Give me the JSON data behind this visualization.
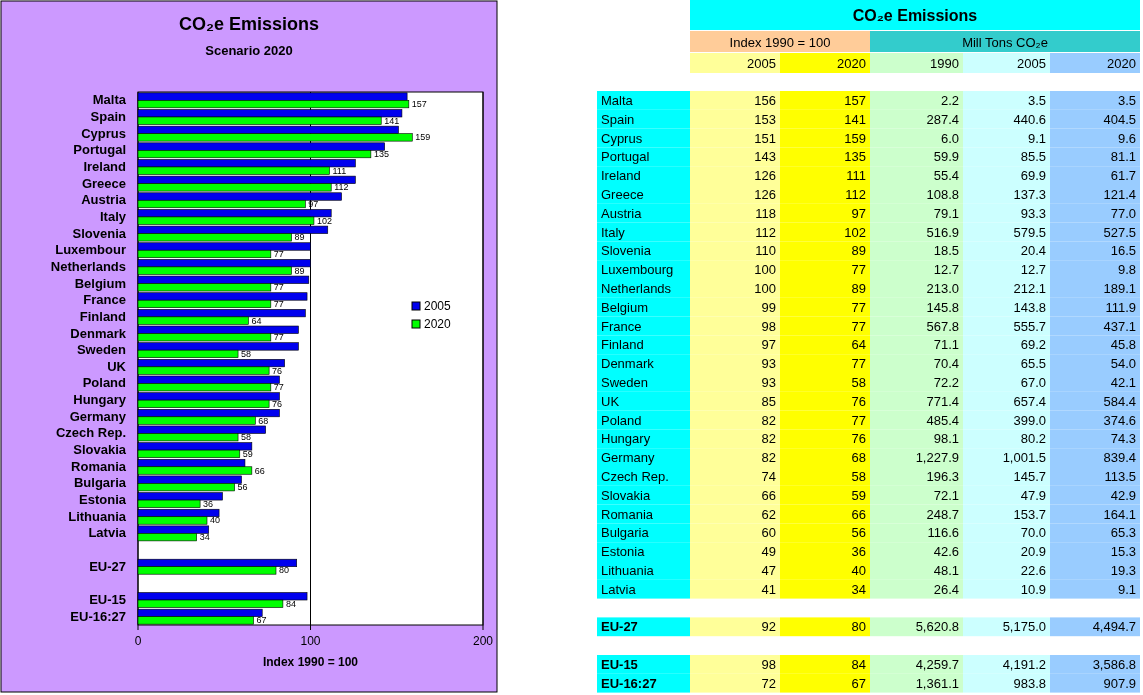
{
  "chart_data": [
    {
      "type": "bar",
      "orientation": "horizontal",
      "title": "CO₂e Emissions",
      "subtitle": "Scenario 2020",
      "xlabel": "Index 1990 = 100",
      "categories": [
        "Malta",
        "Spain",
        "Cyprus",
        "Portugal",
        "Ireland",
        "Greece",
        "Austria",
        "Italy",
        "Slovenia",
        "Luxembour",
        "Netherlands",
        "Belgium",
        "France",
        "Finland",
        "Denmark",
        "Sweden",
        "UK",
        "Poland",
        "Hungary",
        "Germany",
        "Czech Rep.",
        "Slovakia",
        "Romania",
        "Bulgaria",
        "Estonia",
        "Lithuania",
        "Latvia",
        null,
        "EU-27",
        null,
        "EU-15",
        "EU-16:27"
      ],
      "series": [
        {
          "name": "2005",
          "color": "#0000ee",
          "values": [
            156,
            153,
            151,
            143,
            126,
            126,
            118,
            112,
            110,
            100,
            100,
            99,
            98,
            97,
            93,
            93,
            85,
            82,
            82,
            82,
            74,
            66,
            62,
            60,
            49,
            47,
            41,
            null,
            92,
            null,
            98,
            72
          ]
        },
        {
          "name": "2020",
          "color": "#00ff00",
          "values": [
            157,
            141,
            159,
            135,
            111,
            112,
            97,
            102,
            89,
            77,
            89,
            77,
            77,
            64,
            77,
            58,
            76,
            77,
            76,
            68,
            58,
            59,
            66,
            56,
            36,
            40,
            34,
            null,
            80,
            null,
            84,
            67
          ],
          "value_labels": [
            "157",
            "141",
            "159",
            "135",
            "111",
            "112",
            "97",
            "102",
            "89",
            "77",
            "89",
            "77",
            "77",
            "64",
            "77",
            "58",
            "76",
            "77",
            "76",
            "68",
            "58",
            "59",
            "66",
            "56",
            "36",
            "40",
            "34",
            null,
            "80",
            null,
            "84",
            "67"
          ]
        }
      ],
      "xlim": [
        0,
        200
      ],
      "xticks": [
        0,
        100,
        200
      ],
      "grid": "x",
      "legend": "right"
    },
    {
      "type": "heatmap",
      "title": "CO₂e Emissions",
      "annotations": [
        "Index 1990 = 100",
        "Mill Tons CO₂e"
      ],
      "categories": [
        "2005",
        "2020",
        "1990",
        "2005",
        "2020"
      ],
      "colors": [
        "#ffff99",
        "#ffff00",
        "#ccffcc",
        "#ccffff",
        "#99ccff"
      ],
      "y_categories": [
        "Malta",
        "Spain",
        "Cyprus",
        "Portugal",
        "Ireland",
        "Greece",
        "Austria",
        "Italy",
        "Slovenia",
        "Luxembourg",
        "Netherlands",
        "Belgium",
        "France",
        "Finland",
        "Denmark",
        "Sweden",
        "UK",
        "Poland",
        "Hungary",
        "Germany",
        "Czech Rep.",
        "Slovakia",
        "Romania",
        "Bulgaria",
        "Estonia",
        "Lithuania",
        "Latvia"
      ],
      "cells": [
        [
          156,
          157,
          2.2,
          3.5,
          3.5
        ],
        [
          153,
          141,
          287.4,
          440.6,
          404.5
        ],
        [
          151,
          159,
          6.0,
          9.1,
          9.6
        ],
        [
          143,
          135,
          59.9,
          85.5,
          81.1
        ],
        [
          126,
          111,
          55.4,
          69.9,
          61.7
        ],
        [
          126,
          112,
          108.8,
          137.3,
          121.4
        ],
        [
          118,
          97,
          79.1,
          93.3,
          77.0
        ],
        [
          112,
          102,
          516.9,
          579.5,
          527.5
        ],
        [
          110,
          89,
          18.5,
          20.4,
          16.5
        ],
        [
          100,
          77,
          12.7,
          12.7,
          9.8
        ],
        [
          100,
          89,
          213.0,
          212.1,
          189.1
        ],
        [
          99,
          77,
          145.8,
          143.8,
          111.9
        ],
        [
          98,
          77,
          567.8,
          555.7,
          437.1
        ],
        [
          97,
          64,
          71.1,
          69.2,
          45.8
        ],
        [
          93,
          77,
          70.4,
          65.5,
          54.0
        ],
        [
          93,
          58,
          72.2,
          67.0,
          42.1
        ],
        [
          85,
          76,
          771.4,
          657.4,
          584.4
        ],
        [
          82,
          77,
          485.4,
          399.0,
          374.6
        ],
        [
          82,
          76,
          98.1,
          80.2,
          74.3
        ],
        [
          82,
          68,
          1227.9,
          1001.5,
          839.4
        ],
        [
          74,
          58,
          196.3,
          145.7,
          113.5
        ],
        [
          66,
          59,
          72.1,
          47.9,
          42.9
        ],
        [
          62,
          66,
          248.7,
          153.7,
          164.1
        ],
        [
          60,
          56,
          116.6,
          70.0,
          65.3
        ],
        [
          49,
          36,
          42.6,
          20.9,
          15.3
        ],
        [
          47,
          40,
          48.1,
          22.6,
          19.3
        ],
        [
          41,
          34,
          26.4,
          10.9,
          9.1
        ]
      ],
      "cell_labels": [
        [
          "156",
          "157",
          "2.2",
          "3.5",
          "3.5"
        ],
        [
          "153",
          "141",
          "287.4",
          "440.6",
          "404.5"
        ],
        [
          "151",
          "159",
          "6.0",
          "9.1",
          "9.6"
        ],
        [
          "143",
          "135",
          "59.9",
          "85.5",
          "81.1"
        ],
        [
          "126",
          "111",
          "55.4",
          "69.9",
          "61.7"
        ],
        [
          "126",
          "112",
          "108.8",
          "137.3",
          "121.4"
        ],
        [
          "118",
          "97",
          "79.1",
          "93.3",
          "77.0"
        ],
        [
          "112",
          "102",
          "516.9",
          "579.5",
          "527.5"
        ],
        [
          "110",
          "89",
          "18.5",
          "20.4",
          "16.5"
        ],
        [
          "100",
          "77",
          "12.7",
          "12.7",
          "9.8"
        ],
        [
          "100",
          "89",
          "213.0",
          "212.1",
          "189.1"
        ],
        [
          "99",
          "77",
          "145.8",
          "143.8",
          "111.9"
        ],
        [
          "98",
          "77",
          "567.8",
          "555.7",
          "437.1"
        ],
        [
          "97",
          "64",
          "71.1",
          "69.2",
          "45.8"
        ],
        [
          "93",
          "77",
          "70.4",
          "65.5",
          "54.0"
        ],
        [
          "93",
          "58",
          "72.2",
          "67.0",
          "42.1"
        ],
        [
          "85",
          "76",
          "771.4",
          "657.4",
          "584.4"
        ],
        [
          "82",
          "77",
          "485.4",
          "399.0",
          "374.6"
        ],
        [
          "82",
          "76",
          "98.1",
          "80.2",
          "74.3"
        ],
        [
          "82",
          "68",
          "1,227.9",
          "1,001.5",
          "839.4"
        ],
        [
          "74",
          "58",
          "196.3",
          "145.7",
          "113.5"
        ],
        [
          "66",
          "59",
          "72.1",
          "47.9",
          "42.9"
        ],
        [
          "62",
          "66",
          "248.7",
          "153.7",
          "164.1"
        ],
        [
          "60",
          "56",
          "116.6",
          "70.0",
          "65.3"
        ],
        [
          "49",
          "36",
          "42.6",
          "20.9",
          "15.3"
        ],
        [
          "47",
          "40",
          "48.1",
          "22.6",
          "19.3"
        ],
        [
          "41",
          "34",
          "26.4",
          "10.9",
          "9.1"
        ]
      ]
    },
    {
      "type": "heatmap",
      "tick_labels": "y",
      "categories": [
        "2005",
        "2020",
        "1990",
        "2005",
        "2020"
      ],
      "colors": [
        "#ffff99",
        "#ffff00",
        "#ccffcc",
        "#ccffff",
        "#99ccff"
      ],
      "y_categories": [
        "EU-27"
      ],
      "cells": [
        [
          92,
          80,
          5620.8,
          5175.0,
          4494.7
        ]
      ],
      "cell_labels": [
        [
          "92",
          "80",
          "5,620.8",
          "5,175.0",
          "4,494.7"
        ]
      ]
    },
    {
      "type": "heatmap",
      "tick_labels": "y",
      "categories": [
        "2005",
        "2020",
        "1990",
        "2005",
        "2020"
      ],
      "colors": [
        "#ffff99",
        "#ffff00",
        "#ccffcc",
        "#ccffff",
        "#99ccff"
      ],
      "y_categories": [
        "EU-15",
        "EU-16:27"
      ],
      "cells": [
        [
          98,
          84,
          4259.7,
          4191.2,
          3586.8
        ],
        [
          72,
          67,
          1361.1,
          983.8,
          907.9
        ]
      ],
      "cell_labels": [
        [
          "98",
          "84",
          "4,259.7",
          "4,191.2",
          "3,586.8"
        ],
        [
          "72",
          "67",
          "1,361.1",
          "983.8",
          "907.9"
        ]
      ]
    }
  ]
}
